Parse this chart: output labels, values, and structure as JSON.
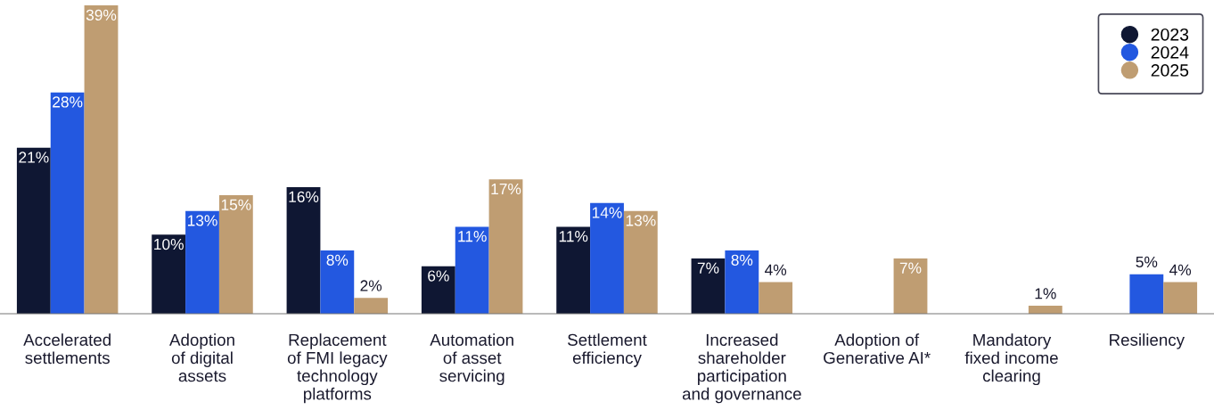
{
  "chart_data": {
    "type": "bar",
    "categories": [
      "Accelerated\nsettlements",
      "Adoption\nof digital\nassets",
      "Replacement\nof FMI legacy\ntechnology\nplatforms",
      "Automation\nof asset\nservicing",
      "Settlement\nefficiency",
      "Increased\nshareholder\nparticipation\nand governance",
      "Adoption of\nGenerative AI*",
      "Mandatory\nfixed income\nclearing",
      "Resiliency"
    ],
    "series": [
      {
        "name": "2023",
        "color": "#0f1733",
        "values": [
          21,
          10,
          16,
          6,
          11,
          7,
          null,
          null,
          null
        ],
        "value_labels": [
          "21%",
          "10%",
          "16%",
          "6%",
          "11%",
          "7%",
          null,
          null,
          null
        ]
      },
      {
        "name": "2024",
        "color": "#2358e0",
        "values": [
          28,
          13,
          8,
          11,
          14,
          8,
          null,
          null,
          5
        ],
        "value_labels": [
          "28%",
          "13%",
          "8%",
          "11%",
          "14%",
          "8%",
          null,
          null,
          "5%"
        ]
      },
      {
        "name": "2025",
        "color": "#bf9d72",
        "values": [
          39,
          15,
          2,
          17,
          13,
          4,
          7,
          1,
          4
        ],
        "value_labels": [
          "39%",
          "15%",
          "2%",
          "17%",
          "13%",
          "4%",
          "7%",
          "1%",
          "4%"
        ]
      }
    ],
    "legend": "top right",
    "grid": false
  }
}
